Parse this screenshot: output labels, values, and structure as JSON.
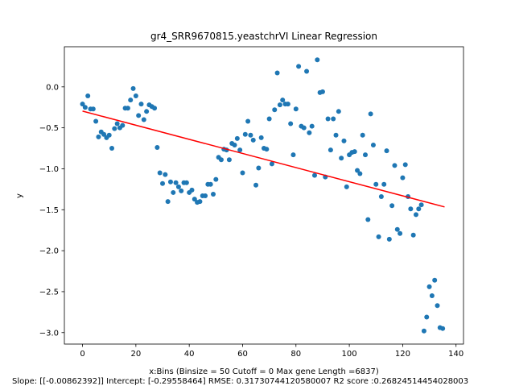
{
  "chart_data": {
    "type": "scatter",
    "title": "gr4_SRR9670815.yeastchrVI Linear Regression",
    "xlabel": "x:Bins  (Binsize = 50 Cutoff = 0 Max gene Length =6837)",
    "ylabel": "y",
    "caption": "Slope: [[-0.00862392]] Intercept: [-0.29558464] RMSE: 0.31730744120580007 R2 score :0.26824514454028003",
    "xlim": [
      -6.8,
      142.8
    ],
    "ylim": [
      -3.14,
      0.49
    ],
    "xticks": [
      0,
      20,
      40,
      60,
      80,
      100,
      120,
      140
    ],
    "xtick_labels": [
      "0",
      "20",
      "40",
      "60",
      "80",
      "100",
      "120",
      "140"
    ],
    "yticks": [
      0.0,
      -0.5,
      -1.0,
      -1.5,
      -2.0,
      -2.5,
      -3.0
    ],
    "ytick_labels": [
      "0.0",
      "−0.5",
      "−1.0",
      "−1.5",
      "−2.0",
      "−2.5",
      "−3.0"
    ],
    "grid": false,
    "legend": "none",
    "series": [
      {
        "kind": "scatter",
        "color": "#1f77b4",
        "points": [
          [
            0,
            -0.21
          ],
          [
            1,
            -0.25
          ],
          [
            2,
            -0.11
          ],
          [
            3,
            -0.27
          ],
          [
            4,
            -0.27
          ],
          [
            5,
            -0.42
          ],
          [
            6,
            -0.61
          ],
          [
            7,
            -0.55
          ],
          [
            8,
            -0.58
          ],
          [
            9,
            -0.62
          ],
          [
            10,
            -0.59
          ],
          [
            11,
            -0.75
          ],
          [
            12,
            -0.51
          ],
          [
            13,
            -0.45
          ],
          [
            14,
            -0.5
          ],
          [
            15,
            -0.47
          ],
          [
            16,
            -0.26
          ],
          [
            17,
            -0.26
          ],
          [
            18,
            -0.16
          ],
          [
            19,
            -0.02
          ],
          [
            20,
            -0.11
          ],
          [
            21,
            -0.35
          ],
          [
            22,
            -0.21
          ],
          [
            23,
            -0.4
          ],
          [
            24,
            -0.3
          ],
          [
            25,
            -0.22
          ],
          [
            26,
            -0.24
          ],
          [
            27,
            -0.26
          ],
          [
            28,
            -0.74
          ],
          [
            29,
            -1.05
          ],
          [
            30,
            -1.18
          ],
          [
            31,
            -1.07
          ],
          [
            32,
            -1.4
          ],
          [
            33,
            -1.16
          ],
          [
            34,
            -1.29
          ],
          [
            35,
            -1.17
          ],
          [
            36,
            -1.22
          ],
          [
            37,
            -1.27
          ],
          [
            38,
            -1.17
          ],
          [
            39,
            -1.17
          ],
          [
            40,
            -1.29
          ],
          [
            41,
            -1.26
          ],
          [
            42,
            -1.37
          ],
          [
            43,
            -1.41
          ],
          [
            44,
            -1.4
          ],
          [
            45,
            -1.33
          ],
          [
            46,
            -1.33
          ],
          [
            47,
            -1.19
          ],
          [
            48,
            -1.19
          ],
          [
            49,
            -1.31
          ],
          [
            50,
            -1.13
          ],
          [
            51,
            -0.86
          ],
          [
            52,
            -0.89
          ],
          [
            53,
            -0.76
          ],
          [
            54,
            -0.77
          ],
          [
            55,
            -0.89
          ],
          [
            56,
            -0.69
          ],
          [
            57,
            -0.71
          ],
          [
            58,
            -0.63
          ],
          [
            59,
            -0.77
          ],
          [
            60,
            -1.05
          ],
          [
            61,
            -0.58
          ],
          [
            62,
            -0.42
          ],
          [
            63,
            -0.59
          ],
          [
            64,
            -0.65
          ],
          [
            65,
            -1.2
          ],
          [
            66,
            -0.99
          ],
          [
            67,
            -0.62
          ],
          [
            68,
            -0.75
          ],
          [
            69,
            -0.76
          ],
          [
            70,
            -0.39
          ],
          [
            71,
            -0.94
          ],
          [
            72,
            -0.28
          ],
          [
            73,
            0.17
          ],
          [
            74,
            -0.22
          ],
          [
            75,
            -0.16
          ],
          [
            76,
            -0.21
          ],
          [
            77,
            -0.21
          ],
          [
            78,
            -0.45
          ],
          [
            79,
            -0.83
          ],
          [
            80,
            -0.27
          ],
          [
            81,
            0.25
          ],
          [
            82,
            -0.48
          ],
          [
            83,
            -0.5
          ],
          [
            84,
            0.19
          ],
          [
            85,
            -0.56
          ],
          [
            86,
            -0.48
          ],
          [
            87,
            -1.08
          ],
          [
            88,
            0.33
          ],
          [
            89,
            -0.07
          ],
          [
            90,
            -0.06
          ],
          [
            91,
            -1.1
          ],
          [
            92,
            -0.39
          ],
          [
            93,
            -0.77
          ],
          [
            94,
            -0.39
          ],
          [
            95,
            -0.59
          ],
          [
            96,
            -0.3
          ],
          [
            97,
            -0.87
          ],
          [
            98,
            -0.66
          ],
          [
            99,
            -1.22
          ],
          [
            100,
            -0.83
          ],
          [
            101,
            -0.8
          ],
          [
            102,
            -0.79
          ],
          [
            103,
            -1.02
          ],
          [
            104,
            -1.06
          ],
          [
            105,
            -0.59
          ],
          [
            106,
            -0.83
          ],
          [
            107,
            -1.62
          ],
          [
            108,
            -0.33
          ],
          [
            109,
            -0.71
          ],
          [
            110,
            -1.19
          ],
          [
            111,
            -1.83
          ],
          [
            112,
            -1.34
          ],
          [
            113,
            -1.19
          ],
          [
            114,
            -0.78
          ],
          [
            115,
            -1.86
          ],
          [
            116,
            -1.45
          ],
          [
            117,
            -0.96
          ],
          [
            118,
            -1.74
          ],
          [
            119,
            -1.79
          ],
          [
            120,
            -1.11
          ],
          [
            121,
            -0.95
          ],
          [
            122,
            -1.34
          ],
          [
            123,
            -1.49
          ],
          [
            124,
            -1.81
          ],
          [
            125,
            -1.56
          ],
          [
            126,
            -1.49
          ],
          [
            127,
            -1.44
          ],
          [
            128,
            -2.98
          ],
          [
            129,
            -2.81
          ],
          [
            130,
            -2.44
          ],
          [
            131,
            -2.55
          ],
          [
            132,
            -2.36
          ],
          [
            133,
            -2.67
          ],
          [
            134,
            -2.94
          ],
          [
            135,
            -2.95
          ]
        ]
      },
      {
        "kind": "line",
        "color": "#ff0000",
        "points": [
          [
            0,
            -0.29558464
          ],
          [
            135.7,
            -1.4658
          ]
        ]
      }
    ]
  }
}
